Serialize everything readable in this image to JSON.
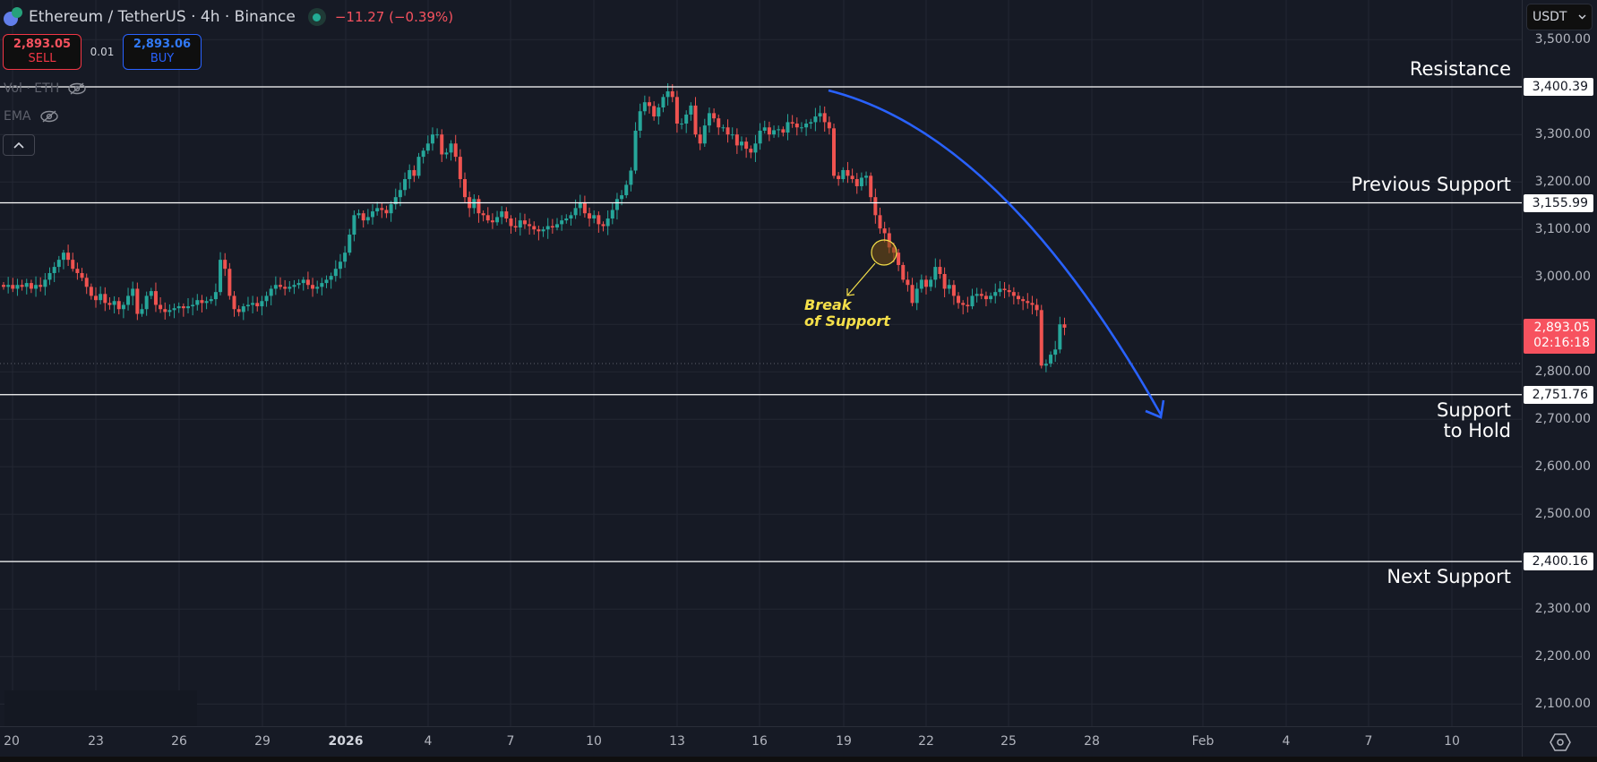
{
  "header": {
    "symbol": "Ethereum / TetherUS · 4h · Binance",
    "change": "−11.27 (−0.39%)",
    "market_status": "open"
  },
  "trade": {
    "sell_price": "2,893.05",
    "sell_label": "SELL",
    "spread": "0.01",
    "buy_price": "2,893.06",
    "buy_label": "BUY"
  },
  "indicators": [
    {
      "label": "Vol · ETH",
      "visible": false
    },
    {
      "label": "EMA",
      "visible": false
    }
  ],
  "currency_selector": {
    "label": "USDT"
  },
  "price_axis": {
    "ticks": [
      "3,500.00",
      "3,300.00",
      "3,200.00",
      "3,100.00",
      "3,000.00",
      "2,800.00",
      "2,700.00",
      "2,600.00",
      "2,500.00",
      "2,300.00",
      "2,200.00",
      "2,100.00"
    ],
    "last_price": "2,893.05",
    "countdown": "02:16:18"
  },
  "time_axis": {
    "labels": [
      "20",
      "23",
      "26",
      "29",
      "2026",
      "4",
      "7",
      "10",
      "13",
      "16",
      "19",
      "22",
      "25",
      "28",
      "Feb",
      "4",
      "7",
      "10"
    ]
  },
  "levels": [
    {
      "name": "Resistance",
      "price": "3,400.39"
    },
    {
      "name": "Previous Support",
      "price": "3,155.99"
    },
    {
      "name": "Support to Hold",
      "price": "2,751.76"
    },
    {
      "name": "Next Support",
      "price": "2,400.16"
    }
  ],
  "annotations": {
    "break_label_line1": "Break",
    "break_label_line2": "of Support",
    "zone_resistance": "Resistance",
    "zone_previous_support": "Previous Support",
    "zone_support_line1": "Support",
    "zone_support_line2": "to Hold",
    "zone_next_support": "Next Support"
  },
  "colors": {
    "up": "#26a69a",
    "down": "#ef5350",
    "projection": "#2962ff",
    "annotation": "#f5e04a",
    "background": "#161a25"
  },
  "chart_data": {
    "type": "candlestick",
    "title": "Ethereum / TetherUS · 4h · Binance",
    "xlabel": "",
    "ylabel": "USDT",
    "ylim": [
      2060,
      3540
    ],
    "x_ticks": [
      "20",
      "23",
      "26",
      "29",
      "2026",
      "4",
      "7",
      "10",
      "13",
      "16",
      "19",
      "22",
      "25",
      "28",
      "Feb",
      "4",
      "7",
      "10"
    ],
    "y_ticks": [
      3500,
      3400,
      3300,
      3200,
      3100,
      3000,
      2900,
      2800,
      2700,
      2600,
      2500,
      2400,
      2300,
      2200,
      2100
    ],
    "grid": true,
    "bar_interval": "4h",
    "closes": [
      2979,
      2983,
      2975,
      2983,
      2979,
      2987,
      2975,
      2983,
      2979,
      2994,
      3008,
      3021,
      3036,
      3051,
      3036,
      3017,
      3008,
      2998,
      2979,
      2960,
      2951,
      2964,
      2945,
      2941,
      2949,
      2932,
      2941,
      2960,
      2975,
      2922,
      2932,
      2960,
      2970,
      2941,
      2932,
      2926,
      2930,
      2934,
      2938,
      2934,
      2938,
      2941,
      2951,
      2945,
      2949,
      2953,
      2968,
      3036,
      3017,
      2960,
      2932,
      2926,
      2938,
      2941,
      2945,
      2938,
      2949,
      2960,
      2975,
      2983,
      2979,
      2975,
      2979,
      2983,
      2987,
      2994,
      2983,
      2975,
      2979,
      2987,
      2994,
      3002,
      3017,
      3032,
      3051,
      3089,
      3130,
      3134,
      3119,
      3126,
      3138,
      3145,
      3141,
      3134,
      3153,
      3168,
      3183,
      3206,
      3225,
      3213,
      3253,
      3266,
      3281,
      3300,
      3300,
      3258,
      3262,
      3281,
      3253,
      3206,
      3168,
      3145,
      3164,
      3134,
      3130,
      3119,
      3115,
      3126,
      3138,
      3123,
      3107,
      3104,
      3119,
      3111,
      3107,
      3100,
      3096,
      3100,
      3107,
      3104,
      3111,
      3119,
      3123,
      3130,
      3145,
      3157,
      3134,
      3123,
      3130,
      3111,
      3107,
      3123,
      3141,
      3164,
      3172,
      3194,
      3224,
      3308,
      3349,
      3368,
      3360,
      3338,
      3357,
      3379,
      3391,
      3379,
      3323,
      3323,
      3342,
      3361,
      3300,
      3281,
      3319,
      3345,
      3334,
      3315,
      3315,
      3300,
      3300,
      3277,
      3285,
      3270,
      3262,
      3281,
      3308,
      3315,
      3300,
      3309,
      3311,
      3304,
      3326,
      3323,
      3315,
      3315,
      3323,
      3326,
      3338,
      3345,
      3326,
      3313,
      3213,
      3206,
      3225,
      3213,
      3206,
      3191,
      3209,
      3213,
      3168,
      3130,
      3102,
      3092,
      3062,
      3051,
      3025,
      2994,
      2983,
      2945,
      2975,
      2994,
      2979,
      2994,
      3021,
      3006,
      2975,
      2983,
      2960,
      2945,
      2941,
      2938,
      2960,
      2964,
      2960,
      2953,
      2960,
      2968,
      2975,
      2972,
      2968,
      2960,
      2953,
      2949,
      2945,
      2941,
      2930,
      2813,
      2817,
      2836,
      2847,
      2900,
      2893
    ],
    "last": 2893.05,
    "horizontal_levels": [
      {
        "label": "Resistance",
        "value": 3400.39
      },
      {
        "label": "Previous Support",
        "value": 3155.99
      },
      {
        "label": "Support to Hold",
        "value": 2751.76
      },
      {
        "label": "Next Support",
        "value": 2400.16
      }
    ],
    "annotations": [
      {
        "text": "Break of Support",
        "type": "circle+arrow",
        "approx_value": 3050
      },
      {
        "text": "",
        "type": "curved-arrow",
        "from_value": 3395,
        "to_value": 2705,
        "direction": "down"
      }
    ]
  }
}
